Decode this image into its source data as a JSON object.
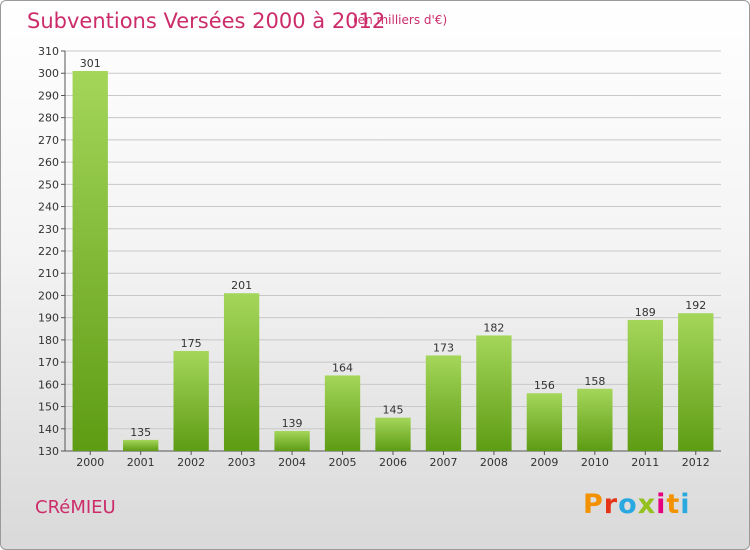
{
  "header": {
    "title": "Subventions Versées 2000 à 2012",
    "unit_note": "(en milliers d'€)"
  },
  "footer": {
    "commune": "CRéMIEU",
    "logo_text": "Proxiti",
    "logo_colors": [
      "#f39200",
      "#e53517",
      "#2aa9e0",
      "#95c11f",
      "#e5007e",
      "#f39200",
      "#2aa9e0"
    ]
  },
  "colors": {
    "bar_light": "#a4d65a",
    "bar_dark": "#5e9c14",
    "grid": "#c8c8c8",
    "axis": "#555555",
    "title": "#cc2c6a"
  },
  "chart_data": {
    "type": "bar",
    "title": "Subventions Versées 2000 à 2012",
    "subtitle": "(en milliers d'€)",
    "xlabel": "",
    "ylabel": "",
    "categories": [
      "2000",
      "2001",
      "2002",
      "2003",
      "2004",
      "2005",
      "2006",
      "2007",
      "2008",
      "2009",
      "2010",
      "2011",
      "2012"
    ],
    "values": [
      301,
      135,
      175,
      201,
      139,
      164,
      145,
      173,
      182,
      156,
      158,
      189,
      192
    ],
    "ylim": [
      130,
      310
    ],
    "yticks": [
      130,
      140,
      150,
      160,
      170,
      180,
      190,
      200,
      210,
      220,
      230,
      240,
      250,
      260,
      270,
      280,
      290,
      300,
      310
    ],
    "grid": true,
    "data_labels": true
  }
}
